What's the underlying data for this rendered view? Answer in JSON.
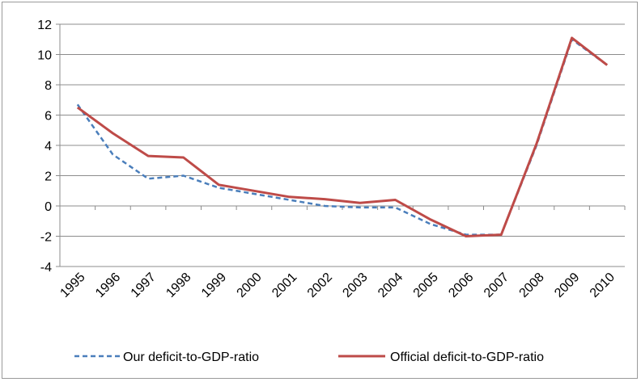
{
  "chart_data": {
    "type": "line",
    "title": "",
    "xlabel": "",
    "ylabel": "",
    "ylim": [
      -4,
      12
    ],
    "yticks": [
      -4,
      -2,
      0,
      2,
      4,
      6,
      8,
      10,
      12
    ],
    "ytick_labels": [
      "-4",
      "-2",
      "0",
      "2",
      "4",
      "6",
      "8",
      "10",
      "12"
    ],
    "categories": [
      "1995",
      "1996",
      "1997",
      "1998",
      "1999",
      "2000",
      "2001",
      "2002",
      "2003",
      "2004",
      "2005",
      "2006",
      "2007",
      "2008",
      "2009",
      "2010"
    ],
    "grid": "horizontal",
    "legend_position": "bottom",
    "series": [
      {
        "name": "Our deficit-to-GDP-ratio",
        "color": "#4a7ebb",
        "style": "dashed",
        "values": [
          6.7,
          3.4,
          1.8,
          2.0,
          1.2,
          0.8,
          0.4,
          0.0,
          -0.1,
          -0.1,
          -1.2,
          -1.9,
          -1.9,
          4.0,
          11.0,
          9.3
        ]
      },
      {
        "name": "Official deficit-to-GDP-ratio",
        "color": "#be4b48",
        "style": "solid",
        "values": [
          6.5,
          4.8,
          3.3,
          3.2,
          1.4,
          1.0,
          0.6,
          0.45,
          0.2,
          0.4,
          -0.9,
          -2.0,
          -1.9,
          4.1,
          11.1,
          9.3
        ]
      }
    ]
  }
}
